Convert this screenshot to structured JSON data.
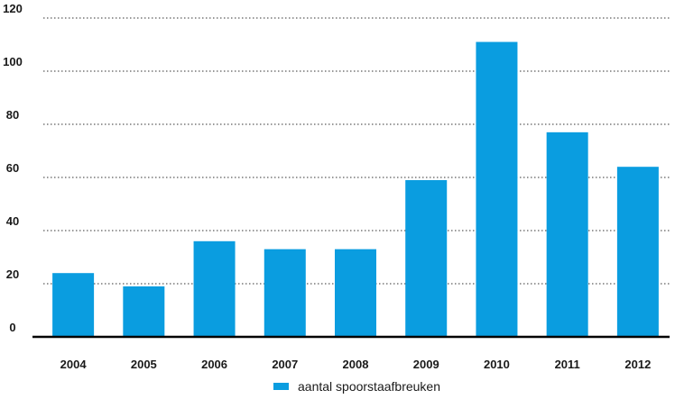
{
  "chart_data": {
    "type": "bar",
    "categories": [
      "2004",
      "2005",
      "2006",
      "2007",
      "2008",
      "2009",
      "2010",
      "2011",
      "2012"
    ],
    "series": [
      {
        "name": "aantal spoorstaafbreuken",
        "values": [
          24,
          19,
          36,
          33,
          33,
          59,
          111,
          77,
          64
        ],
        "color": "#0a9de0"
      }
    ],
    "ylim": [
      0,
      120
    ],
    "yticks": [
      0,
      20,
      40,
      60,
      80,
      100,
      120
    ],
    "grid": true,
    "grid_style": "dotted",
    "legend_position": "bottom-center",
    "title": "",
    "xlabel": "",
    "ylabel": ""
  }
}
